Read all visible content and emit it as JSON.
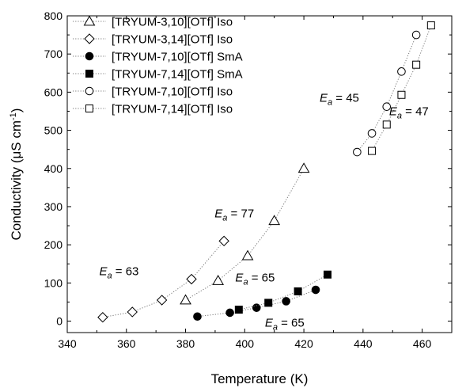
{
  "chart_data": {
    "type": "scatter",
    "title": "",
    "xlabel": "Temperature (K)",
    "ylabel_main": "Conductivity (μS cm",
    "ylabel_sup": "-1",
    "ylabel_close": ")",
    "xlim": [
      340,
      470
    ],
    "ylim": [
      -30,
      800
    ],
    "xticks": [
      340,
      360,
      380,
      400,
      420,
      440,
      460
    ],
    "yticks": [
      0,
      100,
      200,
      300,
      400,
      500,
      600,
      700,
      800
    ],
    "grid": false,
    "legend_position": "top-left",
    "series": [
      {
        "name": "[TRYUM-3,10][OTf] Iso",
        "marker": "triangle-open",
        "line": "dotted",
        "x": [
          380,
          391,
          401,
          410,
          420
        ],
        "y": [
          55,
          106,
          171,
          263,
          400
        ]
      },
      {
        "name": "[TRYUM-3,14][OTf] Iso",
        "marker": "diamond-open",
        "line": "dotted",
        "x": [
          352,
          362,
          372,
          382,
          393
        ],
        "y": [
          10,
          24,
          55,
          110,
          210
        ]
      },
      {
        "name": "[TRYUM-7,10][OTf] SmA",
        "marker": "circle-filled",
        "line": "dotted",
        "x": [
          384,
          395,
          404,
          414,
          424
        ],
        "y": [
          12,
          22,
          35,
          52,
          82
        ]
      },
      {
        "name": "[TRYUM-7,14][OTf] SmA",
        "marker": "square-filled",
        "line": "dotted",
        "x": [
          398,
          408,
          418,
          428
        ],
        "y": [
          30,
          48,
          78,
          122
        ]
      },
      {
        "name": "[TRYUM-7,10][OTf] Iso",
        "marker": "circle-open",
        "line": "dotted",
        "x": [
          438,
          443,
          448,
          453,
          458
        ],
        "y": [
          443,
          492,
          562,
          654,
          750
        ]
      },
      {
        "name": "[TRYUM-7,14][OTf] Iso",
        "marker": "square-open",
        "line": "dotted",
        "x": [
          443,
          448,
          453,
          458,
          463
        ],
        "y": [
          446,
          515,
          593,
          672,
          775
        ]
      }
    ],
    "annotations": [
      {
        "sym": "E",
        "sub": "a",
        "text": " = 63",
        "x": 357.5,
        "y": 120
      },
      {
        "sym": "E",
        "sub": "a",
        "text": " = 77",
        "x": 396.5,
        "y": 272
      },
      {
        "sym": "E",
        "sub": "a",
        "text": " = 65",
        "x": 403.5,
        "y": 104
      },
      {
        "sym": "E",
        "sub": "a",
        "text": " = 65",
        "x": 413.5,
        "y": -14
      },
      {
        "sym": "E",
        "sub": "a",
        "text": " = 45",
        "x": 432.0,
        "y": 575
      },
      {
        "sym": "E",
        "sub": "a",
        "text": " = 47",
        "x": 455.5,
        "y": 540
      }
    ]
  }
}
